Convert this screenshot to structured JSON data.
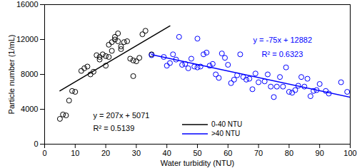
{
  "chart_data": {
    "type": "scatter",
    "x_label": "Water turbidity (NTU)",
    "y_label": "Particle number (1/mL)",
    "xlim": [
      0,
      100
    ],
    "xticks": [
      0,
      10,
      20,
      30,
      40,
      50,
      60,
      70,
      80,
      90,
      100
    ],
    "ylim": [
      0,
      16000
    ],
    "yticks": [
      0,
      4000,
      8000,
      12000,
      16000
    ],
    "grid": false,
    "legend": "bottom",
    "series": [
      {
        "type": "scatter",
        "marker": "circle",
        "color": "#000000",
        "x": [
          5,
          6,
          7,
          8,
          9,
          10,
          12,
          13,
          14,
          15,
          16,
          17,
          18,
          18,
          19,
          20,
          20,
          21,
          21,
          22,
          22,
          23,
          23,
          24,
          24,
          25,
          25,
          26,
          27,
          28,
          29,
          29,
          30,
          31,
          32,
          33,
          35
        ],
        "values": [
          2900,
          3400,
          3300,
          5000,
          6100,
          6000,
          8400,
          8700,
          8900,
          8000,
          8300,
          10200,
          9700,
          10000,
          10300,
          9000,
          10100,
          10000,
          11400,
          11700,
          10700,
          12300,
          12000,
          12700,
          11800,
          11200,
          10900,
          11700,
          11800,
          9800,
          7800,
          9600,
          9500,
          9900,
          12600,
          13000,
          10300
        ]
      },
      {
        "type": "scatter",
        "marker": "circle",
        "color": "#0000ff",
        "x": [
          35,
          39,
          40,
          41,
          42,
          43,
          44,
          45,
          46,
          47,
          48,
          49,
          50,
          50,
          51,
          52,
          53,
          54,
          55,
          56,
          57,
          58,
          59,
          60,
          61,
          62,
          63,
          64,
          65,
          66,
          67,
          68,
          69,
          70,
          72,
          73,
          74,
          75,
          76,
          77,
          78,
          79,
          80,
          81,
          82,
          83,
          84,
          85,
          86,
          87,
          88,
          89,
          90,
          92,
          93,
          97,
          99
        ],
        "values": [
          10200,
          10000,
          9000,
          9300,
          10300,
          9700,
          12300,
          9100,
          9200,
          8700,
          9800,
          8900,
          12100,
          8800,
          8900,
          10300,
          10500,
          9000,
          9200,
          8000,
          7600,
          10400,
          9900,
          9100,
          7000,
          7400,
          7900,
          10300,
          7700,
          7400,
          7500,
          6300,
          8100,
          7100,
          7200,
          8000,
          6600,
          5400,
          6600,
          7700,
          6600,
          8800,
          6000,
          5900,
          6200,
          6700,
          7700,
          6600,
          7500,
          5500,
          6100,
          6200,
          6900,
          6100,
          5800,
          7100,
          6000
        ]
      },
      {
        "name": "0-40 NTU",
        "type": "line",
        "line_style": "solid",
        "color": "#000000",
        "x": [
          5,
          41
        ],
        "values": [
          6106,
          13558
        ]
      },
      {
        "name": ">40 NTU",
        "type": "line",
        "line_style": "solid",
        "color": "#0000ff",
        "x": [
          35,
          100
        ],
        "values": [
          10257,
          5382
        ]
      }
    ],
    "annotations": [
      {
        "text": "y = 207x + 5071",
        "color": "#000000"
      },
      {
        "text": "R² = 0.5139",
        "color": "#000000"
      },
      {
        "text": "y = -75x + 12882",
        "color": "#0000ff"
      },
      {
        "text": "R² = 0.6323",
        "color": "#0000ff"
      }
    ]
  }
}
